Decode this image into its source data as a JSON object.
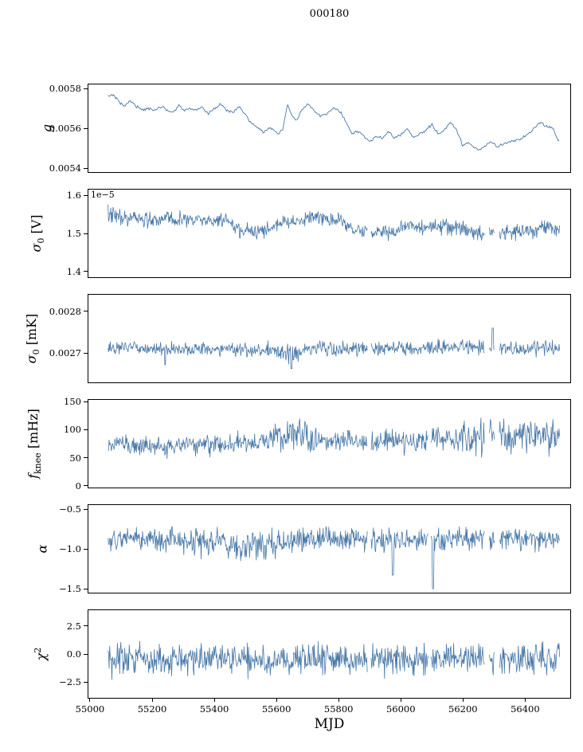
{
  "title": "000180",
  "xlabel": "MJD",
  "chart_data": {
    "type": "line",
    "line_color": "#4878a8",
    "x_range": [
      54995,
      56545
    ],
    "x_ticks": {
      "values": [
        55000,
        55200,
        55400,
        55600,
        55800,
        56000,
        56200,
        56400
      ],
      "labels": [
        "55000",
        "55200",
        "55400",
        "55600",
        "55800",
        "56000",
        "56200",
        "56400"
      ]
    },
    "panels": [
      {
        "name": "g",
        "ylabel": {
          "pre": "g",
          "sub": "",
          "sup": "",
          "post": ""
        },
        "ylim": [
          0.00538,
          0.00582
        ],
        "yticks": {
          "values": [
            0.0054,
            0.0056,
            0.0058
          ],
          "labels": [
            "0.0054",
            "0.0056",
            "0.0058"
          ]
        },
        "offset_label": "",
        "data_range": [
          55058,
          56512
        ],
        "trend": {
          "x": [
            55058,
            55075,
            55090,
            55110,
            55130,
            55150,
            55170,
            55190,
            55210,
            55230,
            55250,
            55270,
            55285,
            55300,
            55320,
            55340,
            55360,
            55380,
            55400,
            55420,
            55440,
            55460,
            55480,
            55500,
            55515,
            55530,
            55545,
            55560,
            55575,
            55590,
            55605,
            55620,
            55635,
            55650,
            55665,
            55680,
            55700,
            55720,
            55740,
            55760,
            55780,
            55800,
            55815,
            55830,
            55845,
            55860,
            55880,
            55900,
            55920,
            55940,
            55960,
            55980,
            56000,
            56020,
            56040,
            56060,
            56080,
            56100,
            56120,
            56140,
            56160,
            56180,
            56200,
            56215,
            56230,
            56250,
            56270,
            56290,
            56310,
            56330,
            56350,
            56370,
            56390,
            56410,
            56430,
            56450,
            56470,
            56490,
            56505
          ],
          "y": [
            0.00576,
            0.00577,
            0.00574,
            0.00571,
            0.00574,
            0.00571,
            0.00569,
            0.0057,
            0.00569,
            0.00571,
            0.00569,
            0.00568,
            0.00572,
            0.00569,
            0.0057,
            0.00569,
            0.00571,
            0.00567,
            0.0057,
            0.00572,
            0.00569,
            0.00568,
            0.00571,
            0.00567,
            0.00563,
            0.00561,
            0.0056,
            0.00558,
            0.0056,
            0.00559,
            0.00557,
            0.00559,
            0.00572,
            0.00566,
            0.00564,
            0.00569,
            0.00572,
            0.00569,
            0.00566,
            0.00567,
            0.0057,
            0.00569,
            0.00566,
            0.00561,
            0.00557,
            0.00559,
            0.00556,
            0.00553,
            0.00556,
            0.00555,
            0.00558,
            0.00555,
            0.00557,
            0.0056,
            0.00555,
            0.00557,
            0.00559,
            0.00562,
            0.00557,
            0.00559,
            0.00563,
            0.00559,
            0.00551,
            0.00553,
            0.00551,
            0.00549,
            0.00551,
            0.00553,
            0.00551,
            0.00552,
            0.00553,
            0.00554,
            0.00555,
            0.00557,
            0.0056,
            0.00563,
            0.00561,
            0.0056,
            0.00554
          ]
        },
        "noise": 1e-05,
        "gaps": [],
        "boosts": [],
        "spikes": [],
        "clip": [
          0.005425,
          0.005795
        ]
      },
      {
        "name": "sigma0_V",
        "ylabel": {
          "pre": "σ",
          "sub": "0",
          "sup": "",
          "post": " [V]"
        },
        "ylim": [
          1.385,
          1.615
        ],
        "yticks": {
          "values": [
            1.4,
            1.5,
            1.6
          ],
          "labels": [
            "1.4",
            "1.5",
            "1.6"
          ]
        },
        "offset_label": "1e−5",
        "data_range": [
          55058,
          56512
        ],
        "trend": {
          "x": [
            55058,
            55100,
            55150,
            55200,
            55250,
            55300,
            55350,
            55400,
            55440,
            55470,
            55500,
            55530,
            55560,
            55600,
            55640,
            55680,
            55720,
            55760,
            55800,
            55830,
            55860,
            55900,
            55940,
            55980,
            56020,
            56060,
            56100,
            56140,
            56180,
            56220,
            56260,
            56300,
            56340,
            56380,
            56420,
            56460,
            56505
          ],
          "y": [
            1.55,
            1.545,
            1.54,
            1.532,
            1.536,
            1.535,
            1.536,
            1.534,
            1.53,
            1.512,
            1.503,
            1.5,
            1.508,
            1.52,
            1.532,
            1.538,
            1.54,
            1.538,
            1.534,
            1.515,
            1.505,
            1.503,
            1.505,
            1.504,
            1.52,
            1.518,
            1.515,
            1.518,
            1.515,
            1.505,
            1.5,
            1.503,
            1.5,
            1.503,
            1.508,
            1.513,
            1.508
          ]
        },
        "noise": 0.03,
        "gaps": [
          [
            55893,
            55904
          ],
          [
            56270,
            56284
          ],
          [
            56302,
            56316
          ]
        ],
        "boosts": [
          [
            55058,
            55110,
            1.3
          ]
        ],
        "spikes": [],
        "clip": [
          1.455,
          1.59
        ]
      },
      {
        "name": "sigma0_mK",
        "ylabel": {
          "pre": "σ",
          "sub": "0",
          "sup": "",
          "post": " [mK]"
        },
        "ylim": [
          0.00263,
          0.00284
        ],
        "yticks": {
          "values": [
            0.0027,
            0.0028
          ],
          "labels": [
            "0.0027",
            "0.0028"
          ]
        },
        "offset_label": "",
        "data_range": [
          55058,
          56512
        ],
        "trend": {
          "x": [
            55058,
            55150,
            55250,
            55350,
            55450,
            55550,
            55600,
            55630,
            55660,
            55700,
            55750,
            55800,
            55850,
            55900,
            55950,
            56000,
            56050,
            56100,
            56150,
            56200,
            56250,
            56300,
            56350,
            56400,
            56450,
            56505
          ],
          "y": [
            0.002715,
            0.002712,
            0.00271,
            0.002712,
            0.00271,
            0.002708,
            0.002705,
            0.002695,
            0.0027,
            0.00271,
            0.002712,
            0.00271,
            0.002712,
            0.00271,
            0.002712,
            0.002712,
            0.00271,
            0.002712,
            0.002714,
            0.002712,
            0.002714,
            0.002712,
            0.002714,
            0.002712,
            0.002713,
            0.002712
          ]
        },
        "noise": 2.5e-05,
        "gaps": [
          [
            55893,
            55904
          ],
          [
            56270,
            56284
          ],
          [
            56302,
            56316
          ]
        ],
        "boosts": [
          [
            55600,
            55680,
            1.3
          ]
        ],
        "spikes": [
          {
            "x": 55648,
            "y": 0.002663
          },
          {
            "x": 55242,
            "y": 0.002672
          },
          {
            "x": 56295,
            "y": 0.00276
          }
        ],
        "clip": [
          0.002655,
          0.00278
        ]
      },
      {
        "name": "fknee",
        "ylabel": {
          "pre": "f",
          "sub": "knee",
          "sup": "",
          "post": " [mHz]"
        },
        "ylim": [
          -3,
          153
        ],
        "yticks": {
          "values": [
            0,
            50,
            100,
            150
          ],
          "labels": [
            "0",
            "50",
            "100",
            "150"
          ]
        },
        "offset_label": "",
        "data_range": [
          55058,
          56512
        ],
        "trend": {
          "x": [
            55058,
            55150,
            55250,
            55350,
            55450,
            55550,
            55600,
            55650,
            55700,
            55750,
            55800,
            55850,
            55900,
            55950,
            56000,
            56050,
            56100,
            56150,
            56200,
            56250,
            56300,
            56350,
            56400,
            56450,
            56505
          ],
          "y": [
            74,
            71,
            70,
            72,
            74,
            78,
            88,
            95,
            88,
            84,
            84,
            80,
            78,
            80,
            80,
            82,
            84,
            84,
            82,
            86,
            95,
            94,
            90,
            90,
            86
          ]
        },
        "noise": 27,
        "gaps": [
          [
            55893,
            55904
          ],
          [
            56088,
            56095
          ],
          [
            56270,
            56284
          ],
          [
            56302,
            56316
          ]
        ],
        "boosts": [
          [
            55590,
            55730,
            1.6
          ],
          [
            56200,
            56515,
            1.6
          ],
          [
            55940,
            56060,
            1.15
          ]
        ],
        "spikes": [],
        "clip": [
          4,
          151
        ]
      },
      {
        "name": "alpha",
        "ylabel": {
          "pre": "α",
          "sub": "",
          "sup": "",
          "post": ""
        },
        "ylim": [
          -1.55,
          -0.45
        ],
        "yticks": {
          "values": [
            -0.5,
            -1.0,
            -1.5
          ],
          "labels": [
            "−0.5",
            "−1.0",
            "−1.5"
          ]
        },
        "offset_label": "",
        "data_range": [
          55058,
          56512
        ],
        "trend": {
          "x": [
            55058,
            55150,
            55250,
            55350,
            55450,
            55500,
            55550,
            55600,
            55650,
            55700,
            55750,
            55800,
            55850,
            55900,
            55950,
            56000,
            56050,
            56100,
            56150,
            56200,
            56250,
            56300,
            56350,
            56400,
            56450,
            56505
          ],
          "y": [
            -0.88,
            -0.87,
            -0.88,
            -0.9,
            -0.95,
            -0.98,
            -0.96,
            -0.92,
            -0.9,
            -0.88,
            -0.87,
            -0.88,
            -0.88,
            -0.89,
            -0.88,
            -0.88,
            -0.87,
            -0.88,
            -0.88,
            -0.87,
            -0.88,
            -0.89,
            -0.88,
            -0.87,
            -0.88,
            -0.88
          ]
        },
        "noise": 0.22,
        "gaps": [
          [
            55893,
            55904
          ],
          [
            56088,
            56095
          ],
          [
            56270,
            56284
          ],
          [
            56302,
            56316
          ]
        ],
        "boosts": [
          [
            55200,
            55450,
            1.15
          ],
          [
            55450,
            55600,
            1.25
          ]
        ],
        "spikes": [
          {
            "x": 56104,
            "y": -1.5
          },
          {
            "x": 55975,
            "y": -1.33
          }
        ],
        "clip": [
          -1.5,
          -0.56
        ]
      },
      {
        "name": "chi2",
        "ylabel": {
          "pre": "χ",
          "sub": "",
          "sup": "2",
          "post": ""
        },
        "ylim": [
          -3.9,
          3.9
        ],
        "yticks": {
          "values": [
            2.5,
            0.0,
            -2.5
          ],
          "labels": [
            "2.5",
            "0.0",
            "−2.5"
          ]
        },
        "offset_label": "",
        "data_range": [
          55058,
          56512
        ],
        "trend": {
          "x": [
            55058,
            55300,
            55600,
            55900,
            56200,
            56505
          ],
          "y": [
            -0.5,
            -0.45,
            -0.5,
            -0.45,
            -0.5,
            -0.45
          ]
        },
        "noise": 2.0,
        "gaps": [
          [
            55893,
            55904
          ],
          [
            56088,
            56095
          ],
          [
            56270,
            56284
          ],
          [
            56302,
            56316
          ]
        ],
        "boosts": [],
        "spikes": [],
        "clip": [
          -3.0,
          2.3
        ]
      }
    ]
  }
}
